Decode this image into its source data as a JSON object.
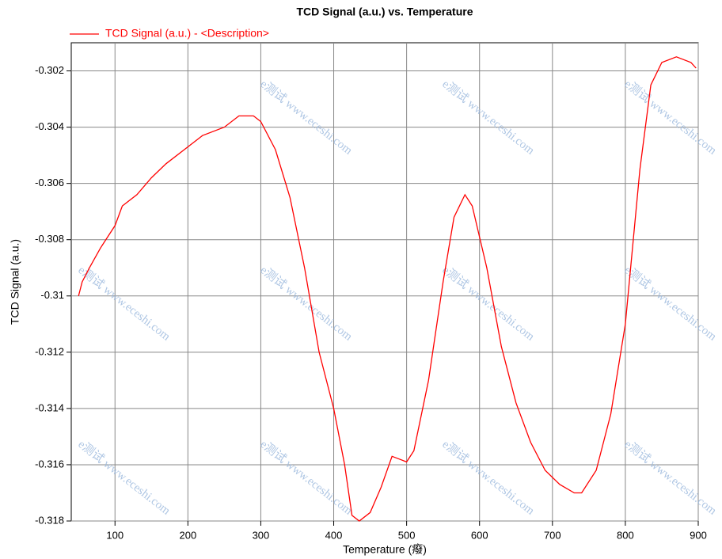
{
  "chart_data": {
    "type": "line",
    "title": "TCD Signal (a.u.) vs. Temperature",
    "x_label": "Temperature (癈)",
    "y_label": "TCD Signal (a.u.)",
    "watermark": "e测试 www.eceshi.com",
    "xlim": [
      40,
      900
    ],
    "ylim": [
      -0.318,
      -0.301
    ],
    "xticks": [
      100,
      200,
      300,
      400,
      500,
      600,
      700,
      800,
      900
    ],
    "yticks": [
      -0.318,
      -0.316,
      -0.314,
      -0.312,
      -0.31,
      -0.308,
      -0.306,
      -0.304,
      -0.302
    ],
    "grid": true,
    "legend": "top-left",
    "x": [
      50,
      55,
      65,
      80,
      100,
      110,
      130,
      150,
      170,
      200,
      220,
      250,
      270,
      290,
      300,
      320,
      340,
      360,
      380,
      400,
      415,
      425,
      435,
      450,
      465,
      480,
      490,
      500,
      510,
      530,
      550,
      565,
      580,
      590,
      610,
      630,
      650,
      670,
      690,
      710,
      730,
      740,
      760,
      780,
      800,
      820,
      835,
      850,
      870,
      890,
      897
    ],
    "series": [
      {
        "name": "TCD Signal (a.u.) - <Description>",
        "color": "#ff0000",
        "values": [
          -0.31,
          -0.3095,
          -0.309,
          -0.3083,
          -0.3075,
          -0.3068,
          -0.3064,
          -0.3058,
          -0.3053,
          -0.3047,
          -0.3043,
          -0.304,
          -0.3036,
          -0.3036,
          -0.3038,
          -0.3048,
          -0.3065,
          -0.309,
          -0.312,
          -0.314,
          -0.316,
          -0.3178,
          -0.318,
          -0.3177,
          -0.3168,
          -0.3157,
          -0.3158,
          -0.3159,
          -0.3155,
          -0.313,
          -0.3095,
          -0.3072,
          -0.3064,
          -0.3068,
          -0.309,
          -0.3118,
          -0.3138,
          -0.3152,
          -0.3162,
          -0.3167,
          -0.317,
          -0.317,
          -0.3162,
          -0.3142,
          -0.311,
          -0.3055,
          -0.3025,
          -0.3017,
          -0.3015,
          -0.3017,
          -0.3019
        ]
      }
    ]
  }
}
